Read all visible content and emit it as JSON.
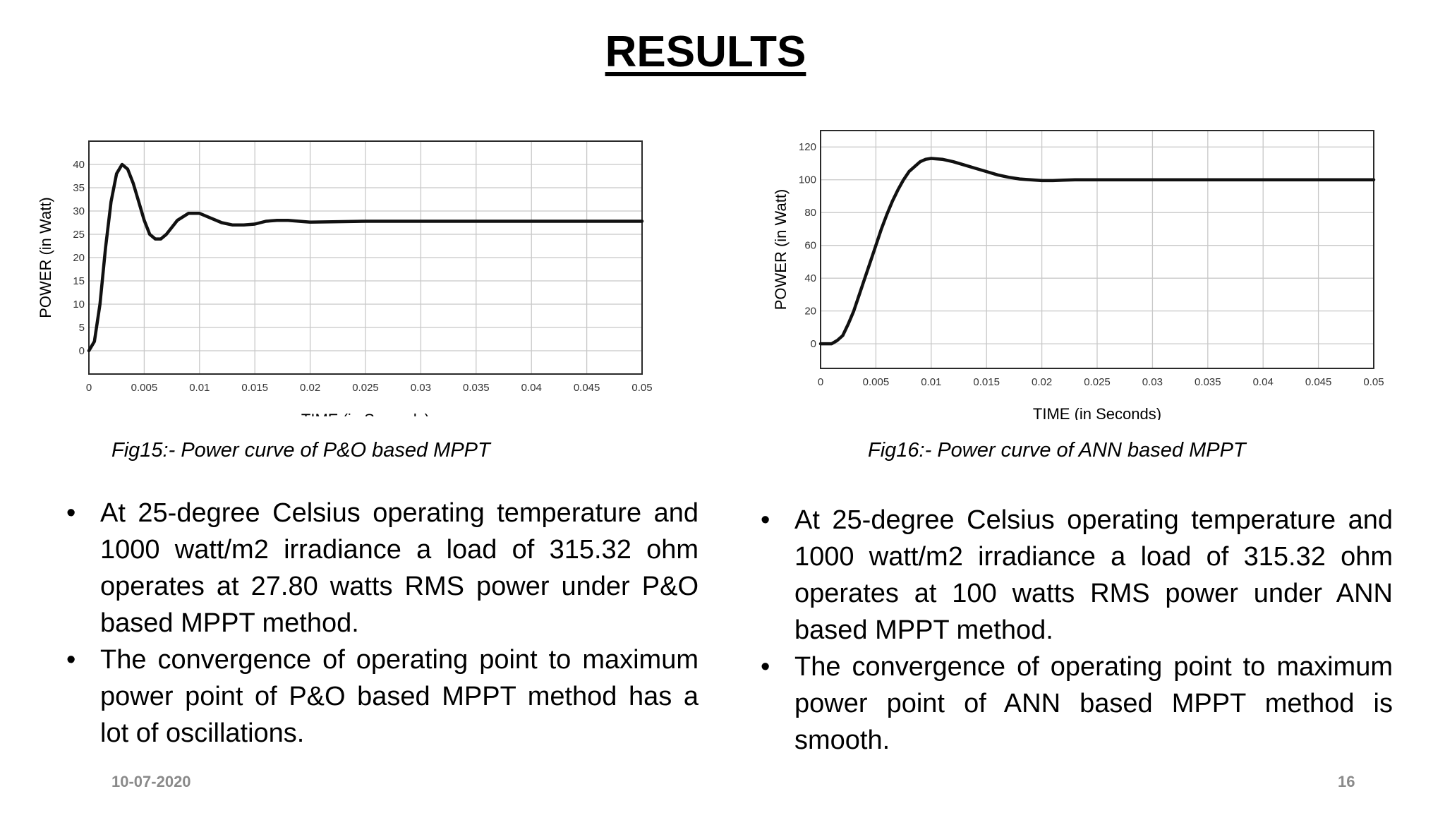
{
  "title": "RESULTS",
  "chart_data": [
    {
      "type": "line",
      "xlabel": "TIME (in Seconds)",
      "ylabel": "POWER (in Watt)",
      "xlim": [
        0,
        0.05
      ],
      "ylim": [
        -5,
        45
      ],
      "xticks": [
        0,
        0.005,
        0.01,
        0.015,
        0.02,
        0.025,
        0.03,
        0.035,
        0.04,
        0.045,
        0.05
      ],
      "xtick_labels": [
        "0",
        "0.005",
        "0.01",
        "0.015",
        "0.02",
        "0.025",
        "0.03",
        "0.035",
        "0.04",
        "0.045",
        "0.05"
      ],
      "yticks": [
        0,
        5,
        10,
        15,
        20,
        25,
        30,
        35,
        40
      ],
      "ytick_labels": [
        "0",
        "5",
        "10",
        "15",
        "20",
        "25",
        "30",
        "35",
        "40"
      ],
      "grid": true,
      "series": [
        {
          "x": [
            0,
            0.0005,
            0.001,
            0.0015,
            0.002,
            0.0025,
            0.003,
            0.0035,
            0.004,
            0.0045,
            0.005,
            0.0055,
            0.006,
            0.0065,
            0.007,
            0.0075,
            0.008,
            0.009,
            0.01,
            0.011,
            0.012,
            0.013,
            0.014,
            0.015,
            0.016,
            0.017,
            0.018,
            0.019,
            0.02,
            0.022,
            0.025,
            0.03,
            0.035,
            0.04,
            0.045,
            0.05
          ],
          "y": [
            0,
            2,
            10,
            22,
            32,
            38,
            40,
            39,
            36,
            32,
            28,
            25,
            24,
            24,
            25,
            26.5,
            28,
            29.5,
            29.5,
            28.5,
            27.5,
            27,
            27,
            27.2,
            27.8,
            28,
            28,
            27.8,
            27.6,
            27.7,
            27.8,
            27.8,
            27.8,
            27.8,
            27.8,
            27.8
          ]
        }
      ]
    },
    {
      "type": "line",
      "xlabel": "TIME (in Seconds)",
      "ylabel": "POWER (in Watt)",
      "xlim": [
        0,
        0.05
      ],
      "ylim": [
        -15,
        130
      ],
      "xticks": [
        0,
        0.005,
        0.01,
        0.015,
        0.02,
        0.025,
        0.03,
        0.035,
        0.04,
        0.045,
        0.05
      ],
      "xtick_labels": [
        "0",
        "0.005",
        "0.01",
        "0.015",
        "0.02",
        "0.025",
        "0.03",
        "0.035",
        "0.04",
        "0.045",
        "0.05"
      ],
      "yticks": [
        0,
        20,
        40,
        60,
        80,
        100,
        120
      ],
      "ytick_labels": [
        "0",
        "20",
        "40",
        "60",
        "80",
        "100",
        "120"
      ],
      "grid": true,
      "series": [
        {
          "x": [
            0,
            0.001,
            0.0015,
            0.002,
            0.0025,
            0.003,
            0.0035,
            0.004,
            0.0045,
            0.005,
            0.0055,
            0.006,
            0.0065,
            0.007,
            0.0075,
            0.008,
            0.0085,
            0.009,
            0.0095,
            0.01,
            0.011,
            0.012,
            0.013,
            0.014,
            0.015,
            0.016,
            0.017,
            0.018,
            0.019,
            0.02,
            0.021,
            0.022,
            0.023,
            0.025,
            0.03,
            0.035,
            0.04,
            0.045,
            0.05
          ],
          "y": [
            0,
            0,
            2,
            5,
            12,
            20,
            30,
            40,
            50,
            60,
            70,
            79,
            87,
            94,
            100,
            105,
            108,
            111,
            112.5,
            113,
            112.5,
            111,
            109,
            107,
            105,
            103,
            101.5,
            100.5,
            100,
            99.5,
            99.5,
            99.8,
            100,
            100,
            100,
            100,
            100,
            100,
            100
          ]
        }
      ]
    }
  ],
  "captions": {
    "left": "Fig15:- Power curve of P&O based MPPT",
    "right": "Fig16:- Power curve of ANN based MPPT"
  },
  "bullets_left": [
    "At 25-degree Celsius operating temperature and 1000 watt/m2 irradiance a load of 315.32 ohm operates at 27.80 watts RMS power under P&O based MPPT method.",
    "The convergence of operating point to maximum power point of P&O based MPPT method has a lot of oscillations."
  ],
  "bullets_right": [
    "At 25-degree Celsius operating temperature and 1000 watt/m2 irradiance a load of 315.32 ohm operates at 100 watts RMS power under ANN based MPPT method.",
    "The convergence of operating point to maximum power point of ANN based MPPT method is smooth."
  ],
  "footer": {
    "date": "10-07-2020",
    "page": "16"
  }
}
